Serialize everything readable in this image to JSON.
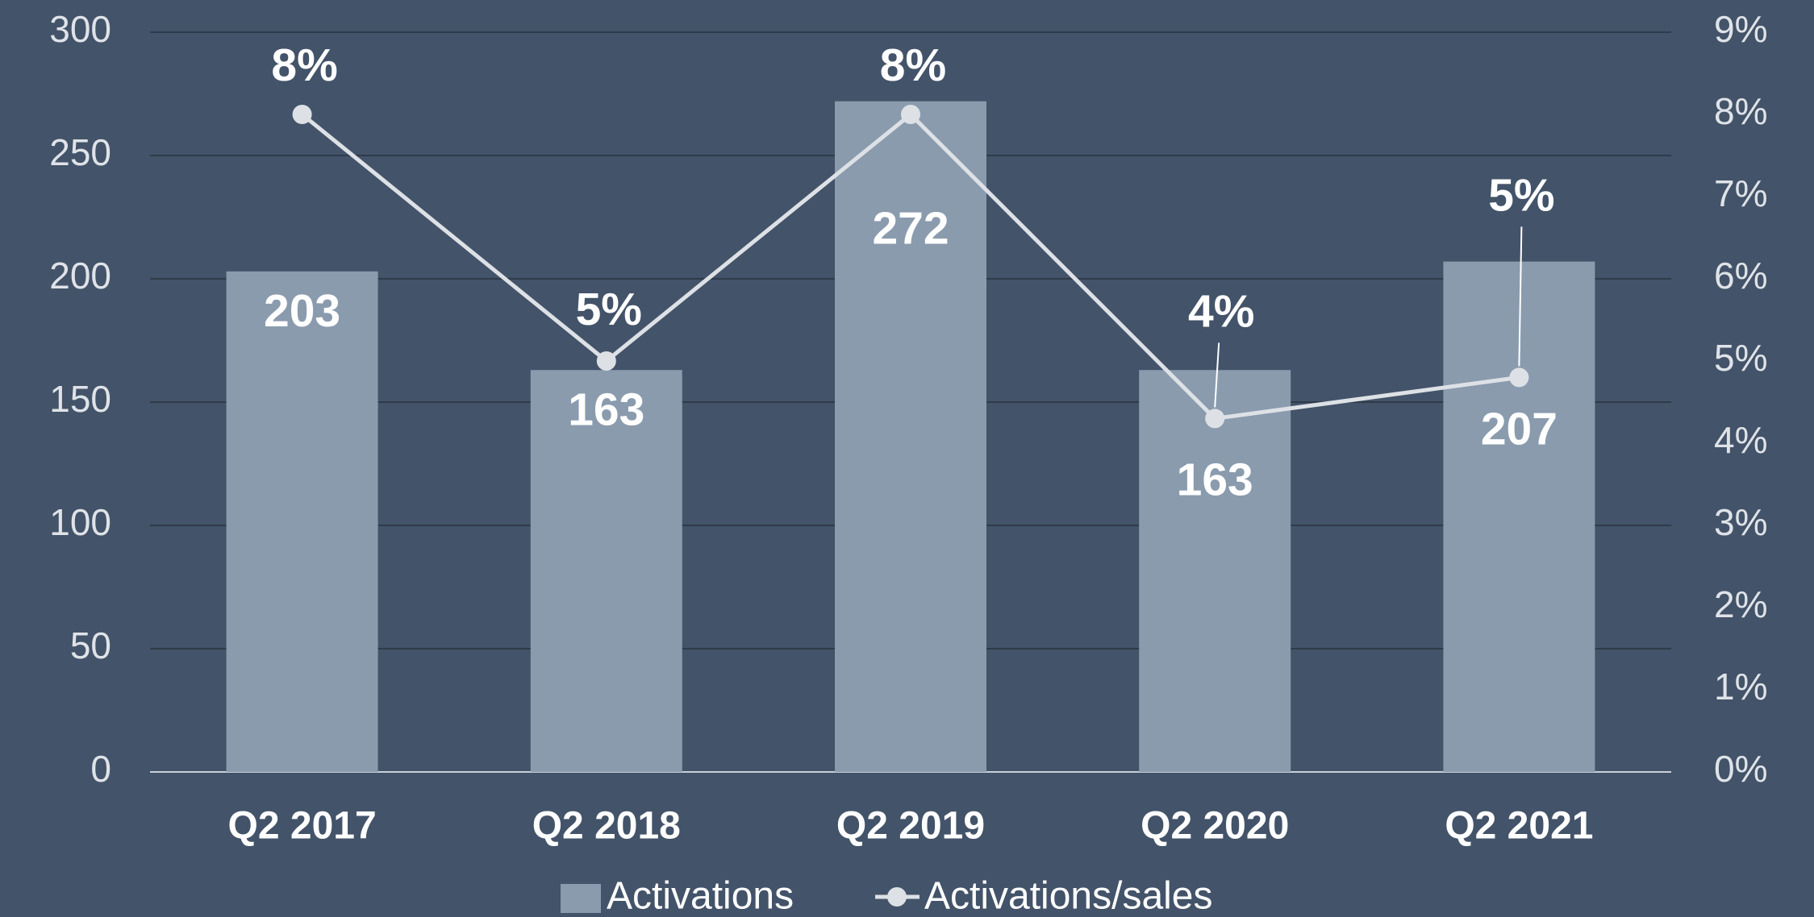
{
  "chart_data": {
    "type": "bar_line",
    "categories": [
      "Q2 2017",
      "Q2 2018",
      "Q2 2019",
      "Q2 2020",
      "Q2 2021"
    ],
    "series": [
      {
        "name": "Activations",
        "color": "#8a9bae",
        "values": [
          203,
          163,
          272,
          163,
          207
        ]
      },
      {
        "name": "Activations/sales",
        "color": "#dde1e6",
        "axis": "y2",
        "values": [
          8,
          5,
          8,
          4.3,
          4.8
        ],
        "value_labels": [
          "8%",
          "5%",
          "8%",
          "4%",
          "5%"
        ]
      }
    ],
    "ylim": [
      0,
      300
    ],
    "yticks": [
      0,
      50,
      100,
      150,
      200,
      250,
      300
    ],
    "y2lim": [
      0,
      9
    ],
    "y2ticks": [
      {
        "value": 0,
        "label": "0%"
      },
      {
        "value": 1,
        "label": "1%"
      },
      {
        "value": 2,
        "label": "2%"
      },
      {
        "value": 3,
        "label": "3%"
      },
      {
        "value": 4,
        "label": "4%"
      },
      {
        "value": 5,
        "label": "5%"
      },
      {
        "value": 6,
        "label": "6%"
      },
      {
        "value": 7,
        "label": "7%"
      },
      {
        "value": 8,
        "label": "8%"
      },
      {
        "value": 9,
        "label": "9%"
      }
    ],
    "grid": true,
    "legend": "bottom"
  }
}
